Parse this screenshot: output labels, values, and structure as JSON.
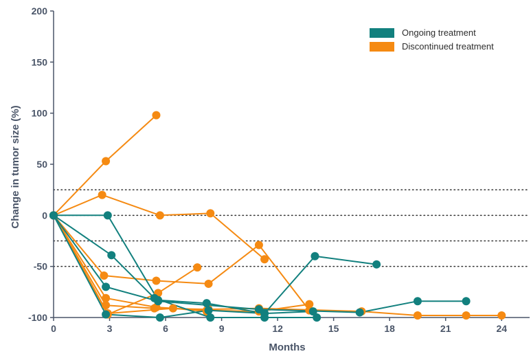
{
  "colors": {
    "ongoing": "#12807e",
    "discontinued": "#f58a12",
    "axis": "#4a5568"
  },
  "chart_data": {
    "type": "line",
    "title": "",
    "xlabel": "Months",
    "ylabel": "Change in tumor size (%)",
    "xlim": [
      0,
      25.5
    ],
    "ylim": [
      -100,
      200
    ],
    "xticks": [
      0,
      3,
      6,
      9,
      12,
      15,
      18,
      21,
      24
    ],
    "yticks": [
      -100,
      -50,
      0,
      50,
      100,
      150,
      200
    ],
    "reference_lines": [
      25,
      0,
      -25,
      -50
    ],
    "grid": false,
    "legend": {
      "placement": "top-right",
      "entries": [
        {
          "label": "Ongoing treatment",
          "group": "ongoing"
        },
        {
          "label": "Discontinued treatment",
          "group": "discontinued"
        }
      ]
    },
    "series": [
      {
        "group": "discontinued",
        "x": [
          0,
          2.8,
          5.5
        ],
        "y": [
          0,
          53,
          98
        ]
      },
      {
        "group": "discontinued",
        "x": [
          0,
          2.6,
          5.7,
          8.4,
          11.3
        ],
        "y": [
          0,
          20,
          0,
          2,
          -43
        ]
      },
      {
        "group": "discontinued",
        "x": [
          0,
          2.7,
          5.5,
          8.3,
          11.0,
          13.7
        ],
        "y": [
          0,
          -59,
          -64,
          -67,
          -29,
          -93
        ]
      },
      {
        "group": "discontinued",
        "x": [
          0,
          2.8,
          5.4,
          8.3,
          11.0,
          16.5,
          19.5,
          22.1,
          24.0
        ],
        "y": [
          0,
          -88,
          -91,
          -92,
          -91,
          -94,
          -98,
          -98,
          -98
        ]
      },
      {
        "group": "discontinued",
        "x": [
          0,
          2.8,
          5.5,
          8.2,
          11.0,
          13.7
        ],
        "y": [
          0,
          -81,
          -90,
          -93,
          -94,
          -87
        ]
      },
      {
        "group": "discontinued",
        "x": [
          0,
          2.9,
          5.6,
          7.7
        ],
        "y": [
          0,
          -97,
          -76,
          -51
        ]
      },
      {
        "group": "discontinued",
        "x": [
          0,
          2.9,
          6.4,
          8.2
        ],
        "y": [
          0,
          -96,
          -91,
          -94
        ]
      },
      {
        "group": "ongoing",
        "x": [
          0,
          2.9,
          5.6,
          8.2,
          11.3,
          14.0,
          17.3
        ],
        "y": [
          0,
          0,
          -83,
          -86,
          -96,
          -40,
          -48
        ]
      },
      {
        "group": "ongoing",
        "x": [
          0,
          3.1,
          5.4,
          8.4,
          11.3,
          14.1
        ],
        "y": [
          0,
          -39,
          -81,
          -100,
          -100,
          -100
        ]
      },
      {
        "group": "ongoing",
        "x": [
          0,
          2.8,
          5.6,
          11.0,
          16.4,
          19.5,
          22.1
        ],
        "y": [
          0,
          -70,
          -84,
          -92,
          -95,
          -84,
          -84
        ]
      },
      {
        "group": "ongoing",
        "x": [
          0,
          2.8,
          5.7,
          8.3,
          11.3,
          13.9
        ],
        "y": [
          0,
          -97,
          -100,
          -93,
          -96,
          -94
        ]
      }
    ]
  }
}
